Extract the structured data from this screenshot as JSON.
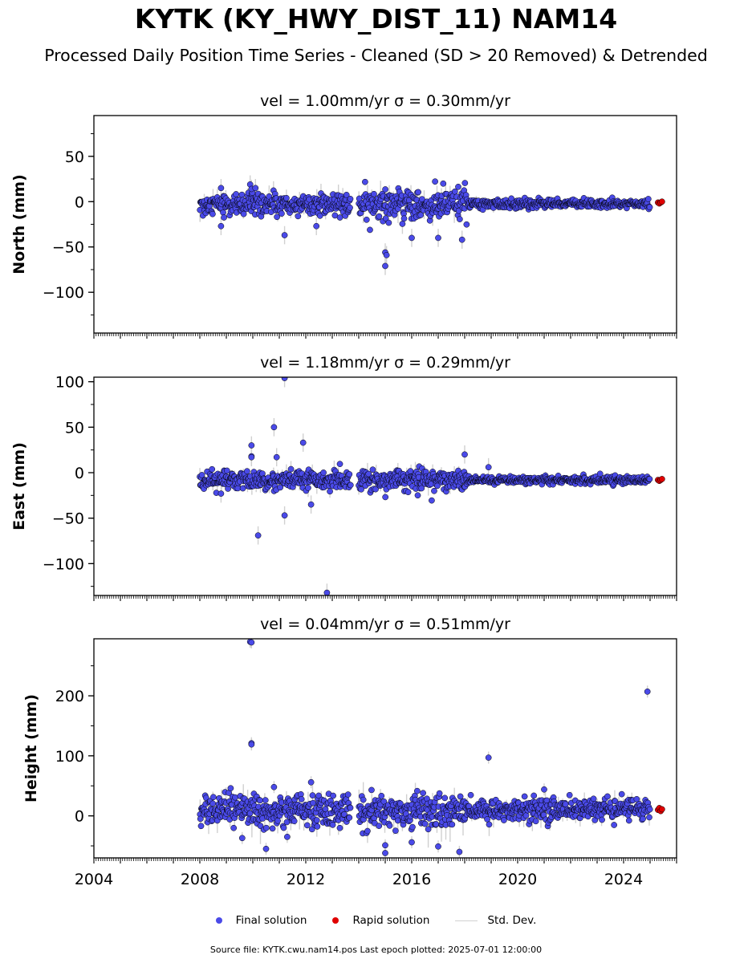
{
  "title": "KYTK (KY_HWY_DIST_11) NAM14",
  "subtitle": "Processed Daily Position Time Series - Cleaned (SD > 20 Removed) & Detrended",
  "legend": {
    "final": "Final solution",
    "rapid": "Rapid solution",
    "std": "Std. Dev."
  },
  "footer": "Source file: KYTK.cwu.nam14.pos  Last epoch plotted: 2025-07-01 12:00:00",
  "colors": {
    "final": "#4a4ae8",
    "rapid": "#e00000",
    "std": "#d0d0d0",
    "edge": "#000000"
  },
  "chart_data": [
    {
      "type": "scatter",
      "component": "north",
      "title": "vel = 1.00mm/yr   σ = 0.30mm/yr",
      "ylabel": "North (mm)",
      "xlim": [
        2004.0,
        2026.0
      ],
      "ylim": [
        -145,
        95
      ],
      "yticks": [
        50,
        0,
        -50,
        -100
      ],
      "xticks": [],
      "segments": [
        {
          "start": 2008.0,
          "end": 2013.7,
          "center": -3,
          "spread": 6,
          "note_dips": []
        },
        {
          "start": 2014.0,
          "end": 2018.1,
          "center": -4,
          "spread": 8
        },
        {
          "start": 2018.1,
          "end": 2025.0,
          "center": -2.5,
          "spread": 2.5
        }
      ],
      "outliers": [
        [
          2008.8,
          15
        ],
        [
          2009.9,
          19
        ],
        [
          2009.95,
          14
        ],
        [
          2010.1,
          15
        ],
        [
          2008.8,
          -27
        ],
        [
          2011.2,
          -37
        ],
        [
          2012.4,
          -27
        ],
        [
          2015.0,
          -56
        ],
        [
          2015.05,
          -59
        ],
        [
          2015.0,
          -71
        ],
        [
          2016.0,
          -40
        ],
        [
          2017.0,
          -40
        ],
        [
          2017.9,
          -42
        ]
      ],
      "rapid": [
        [
          2025.3,
          -1
        ],
        [
          2025.35,
          -2
        ],
        [
          2025.4,
          -1
        ],
        [
          2025.45,
          0
        ]
      ]
    },
    {
      "type": "scatter",
      "component": "east",
      "title": "vel = 1.18mm/yr   σ = 0.29mm/yr",
      "ylabel": "East (mm)",
      "xlim": [
        2004.0,
        2026.0
      ],
      "ylim": [
        -135,
        105
      ],
      "yticks": [
        100,
        50,
        0,
        -50,
        -100
      ],
      "xticks": [],
      "segments": [
        {
          "start": 2008.0,
          "end": 2013.7,
          "center": -8,
          "spread": 5
        },
        {
          "start": 2014.0,
          "end": 2018.1,
          "center": -8,
          "spread": 6
        },
        {
          "start": 2018.1,
          "end": 2025.0,
          "center": -8,
          "spread": 2
        }
      ],
      "outliers": [
        [
          2011.2,
          104
        ],
        [
          2010.8,
          50
        ],
        [
          2009.95,
          30
        ],
        [
          2009.95,
          18
        ],
        [
          2009.95,
          17
        ],
        [
          2010.9,
          17
        ],
        [
          2011.9,
          33
        ],
        [
          2008.8,
          -23
        ],
        [
          2010.2,
          -69
        ],
        [
          2011.2,
          -47
        ],
        [
          2012.2,
          -35
        ],
        [
          2012.8,
          -132
        ],
        [
          2018.0,
          20
        ],
        [
          2018.9,
          6
        ]
      ],
      "rapid": [
        [
          2025.3,
          -8
        ],
        [
          2025.35,
          -9
        ],
        [
          2025.4,
          -8
        ],
        [
          2025.45,
          -7
        ]
      ]
    },
    {
      "type": "scatter",
      "component": "height",
      "title": "vel = 0.04mm/yr   σ = 0.51mm/yr",
      "ylabel": "Height (mm)",
      "xlim": [
        2004.0,
        2026.0
      ],
      "ylim": [
        -70,
        295
      ],
      "yticks": [
        200,
        100,
        0
      ],
      "xticks": [
        2004,
        2008,
        2012,
        2016,
        2020,
        2024
      ],
      "segments": [
        {
          "start": 2008.0,
          "end": 2013.7,
          "center": 8,
          "spread": 14
        },
        {
          "start": 2014.0,
          "end": 2018.1,
          "center": 8,
          "spread": 14
        },
        {
          "start": 2018.1,
          "end": 2025.0,
          "center": 10,
          "spread": 9
        }
      ],
      "outliers": [
        [
          2009.9,
          290
        ],
        [
          2009.95,
          289
        ],
        [
          2009.95,
          121
        ],
        [
          2009.95,
          119
        ],
        [
          2024.9,
          207
        ],
        [
          2018.9,
          97
        ],
        [
          2010.8,
          48
        ],
        [
          2012.2,
          56
        ],
        [
          2021.0,
          44
        ],
        [
          2009.6,
          -37
        ],
        [
          2010.5,
          -55
        ],
        [
          2011.3,
          -35
        ],
        [
          2015.0,
          -49
        ],
        [
          2015.0,
          -62
        ],
        [
          2016.0,
          -44
        ],
        [
          2017.0,
          -51
        ],
        [
          2017.8,
          -60
        ]
      ],
      "rapid": [
        [
          2025.3,
          10
        ],
        [
          2025.35,
          13
        ],
        [
          2025.4,
          8
        ],
        [
          2025.45,
          11
        ]
      ]
    }
  ]
}
